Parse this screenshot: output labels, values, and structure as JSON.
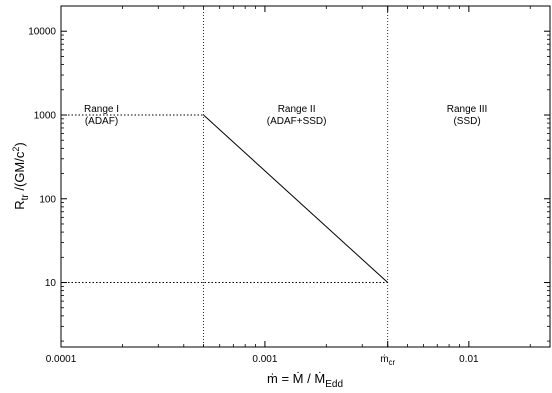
{
  "chart_data": {
    "type": "line",
    "x_scale": "log",
    "y_scale": "log",
    "xlim": [
      0.0001,
      0.025
    ],
    "ylim": [
      1.7,
      20000
    ],
    "grid": false,
    "legend": "none",
    "xlabel": {
      "lhs": "ṁ",
      "eq": "=",
      "num": "Ṁ",
      "slash": "/",
      "den": "Ṁ",
      "den_sub": "Edd"
    },
    "ylabel": {
      "main": "R",
      "sub": "tr",
      "rest": " /(GM/c",
      "sup": "2",
      "close": ")"
    },
    "x_ticks": [
      {
        "value": 0.0001,
        "label": "0.0001"
      },
      {
        "value": 0.001,
        "label": "0.001"
      },
      {
        "value": 0.004,
        "label": "ṁ",
        "sub": "cr"
      },
      {
        "value": 0.01,
        "label": "0.01"
      }
    ],
    "y_ticks": [
      {
        "value": 10,
        "label": "10"
      },
      {
        "value": 100,
        "label": "100"
      },
      {
        "value": 1000,
        "label": "1000"
      },
      {
        "value": 10000,
        "label": "10000"
      }
    ],
    "boundaries": [
      0.0005,
      0.004
    ],
    "series": [
      {
        "x": [
          0.0005,
          0.004
        ],
        "y": [
          1000,
          10
        ]
      }
    ],
    "reference_lines": [
      {
        "y": 1000,
        "x_from": 0.0001,
        "x_to": 0.0005
      },
      {
        "y": 10,
        "x_from": 0.0001,
        "x_to": 0.004
      }
    ],
    "regions": [
      {
        "title": "Range I",
        "subtitle": "(ADAF)",
        "x": 0.000158,
        "y": 800
      },
      {
        "title": "Range II",
        "subtitle": "(ADAF+SSD)",
        "x": 0.00143,
        "y": 800
      },
      {
        "title": "Range III",
        "subtitle": "(SSD)",
        "x": 0.0098,
        "y": 800
      }
    ]
  }
}
